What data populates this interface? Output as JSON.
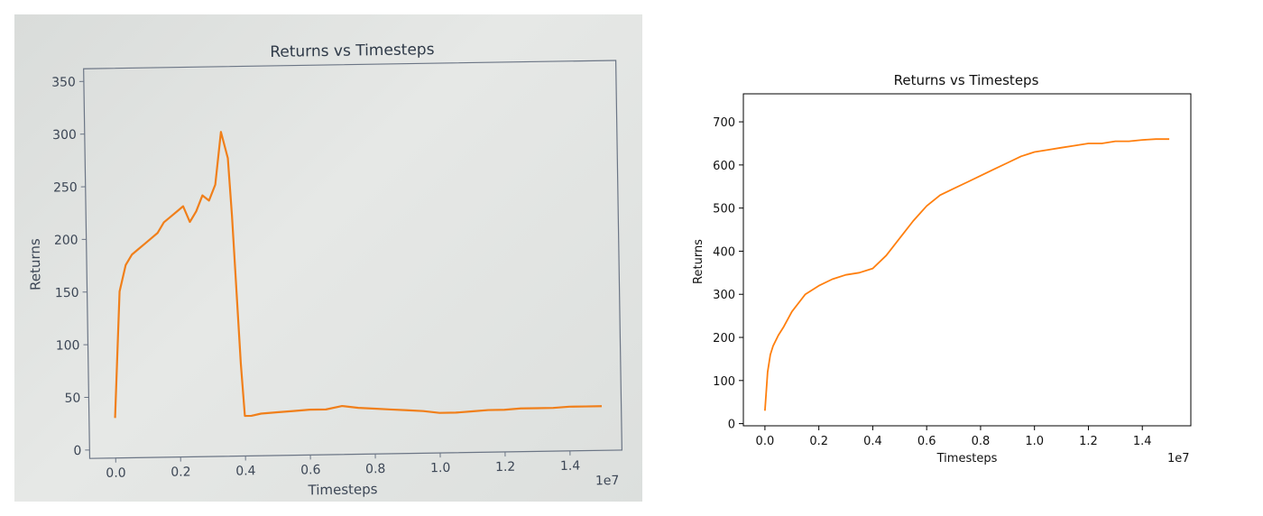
{
  "chart_data": [
    {
      "type": "line",
      "title": "Returns vs Timesteps",
      "xlabel": "Timesteps",
      "ylabel": "Returns",
      "x_offset_label": "1e7",
      "xlim": [
        -0.08,
        1.56
      ],
      "ylim": [
        -8,
        362
      ],
      "xticks": [
        0.0,
        0.2,
        0.4,
        0.6,
        0.8,
        1.0,
        1.2,
        1.4
      ],
      "xtick_labels": [
        "0.0",
        "0.2",
        "0.4",
        "0.6",
        "0.8",
        "1.0",
        "1.2",
        "1.4"
      ],
      "yticks": [
        0,
        50,
        100,
        150,
        200,
        250,
        300,
        350
      ],
      "ytick_labels": [
        "0",
        "50",
        "100",
        "150",
        "200",
        "250",
        "300",
        "350"
      ],
      "grid": false,
      "series": [
        {
          "color": "#f07f1a",
          "x": [
            0.0,
            0.02,
            0.04,
            0.06,
            0.08,
            0.1,
            0.12,
            0.14,
            0.16,
            0.18,
            0.2,
            0.22,
            0.24,
            0.26,
            0.28,
            0.3,
            0.32,
            0.34,
            0.36,
            0.37,
            0.38,
            0.39,
            0.4,
            0.42,
            0.45,
            0.5,
            0.55,
            0.6,
            0.65,
            0.7,
            0.75,
            0.8,
            0.85,
            0.9,
            0.95,
            1.0,
            1.05,
            1.1,
            1.15,
            1.2,
            1.25,
            1.3,
            1.35,
            1.4,
            1.45,
            1.5
          ],
          "y": [
            30,
            150,
            175,
            185,
            190,
            195,
            200,
            205,
            215,
            220,
            225,
            230,
            215,
            225,
            240,
            235,
            250,
            300,
            275,
            220,
            150,
            80,
            30,
            30,
            32,
            33,
            34,
            35,
            35,
            38,
            36,
            35,
            34,
            33,
            32,
            30,
            30,
            31,
            32,
            32,
            33,
            33,
            33,
            34,
            34,
            34
          ]
        }
      ]
    },
    {
      "type": "line",
      "title": "Returns vs Timesteps",
      "xlabel": "Timesteps",
      "ylabel": "Returns",
      "x_offset_label": "1e7",
      "xlim": [
        -0.08,
        1.58
      ],
      "ylim": [
        -5,
        765
      ],
      "xticks": [
        0.0,
        0.2,
        0.4,
        0.6,
        0.8,
        1.0,
        1.2,
        1.4
      ],
      "xtick_labels": [
        "0.0",
        "0.2",
        "0.4",
        "0.6",
        "0.8",
        "1.0",
        "1.2",
        "1.4"
      ],
      "yticks": [
        0,
        100,
        200,
        300,
        400,
        500,
        600,
        700
      ],
      "ytick_labels": [
        "0",
        "100",
        "200",
        "300",
        "400",
        "500",
        "600",
        "700"
      ],
      "grid": false,
      "series": [
        {
          "color": "#ff7f0e",
          "x": [
            0.0,
            0.01,
            0.02,
            0.03,
            0.05,
            0.07,
            0.1,
            0.15,
            0.2,
            0.25,
            0.3,
            0.35,
            0.4,
            0.45,
            0.5,
            0.55,
            0.6,
            0.65,
            0.7,
            0.75,
            0.8,
            0.85,
            0.9,
            0.95,
            1.0,
            1.05,
            1.1,
            1.15,
            1.2,
            1.25,
            1.3,
            1.35,
            1.4,
            1.45,
            1.5
          ],
          "y": [
            30,
            120,
            160,
            180,
            205,
            225,
            260,
            300,
            320,
            335,
            345,
            350,
            360,
            390,
            430,
            470,
            505,
            530,
            545,
            560,
            575,
            590,
            605,
            620,
            630,
            635,
            640,
            645,
            650,
            650,
            655,
            655,
            658,
            660,
            660
          ]
        }
      ]
    }
  ]
}
